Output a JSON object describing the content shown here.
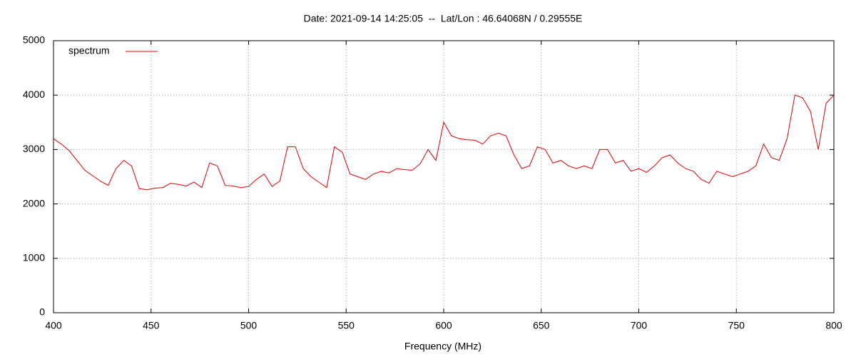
{
  "chart_data": {
    "type": "line",
    "title": "Date: 2021-09-14 14:25:05  --  Lat/Lon : 46.64068N / 0.29555E",
    "x_label": "Frequency (MHz)",
    "x": [
      400,
      404,
      408,
      412,
      416,
      420,
      424,
      428,
      432,
      436,
      440,
      444,
      448,
      452,
      456,
      460,
      464,
      468,
      472,
      476,
      480,
      484,
      488,
      492,
      496,
      500,
      504,
      508,
      512,
      516,
      520,
      524,
      528,
      532,
      536,
      540,
      544,
      548,
      552,
      556,
      560,
      564,
      568,
      572,
      576,
      580,
      584,
      588,
      592,
      596,
      600,
      604,
      608,
      612,
      616,
      620,
      624,
      628,
      632,
      636,
      640,
      644,
      648,
      652,
      656,
      660,
      664,
      668,
      672,
      676,
      680,
      684,
      688,
      692,
      696,
      700,
      704,
      708,
      712,
      716,
      720,
      724,
      728,
      732,
      736,
      740,
      744,
      748,
      752,
      756,
      760,
      764,
      768,
      772,
      776,
      780,
      784,
      788,
      792,
      796,
      800
    ],
    "series": [
      {
        "name": "spectrum",
        "color": "#dd0000",
        "values": [
          3200,
          3100,
          2980,
          2800,
          2620,
          2520,
          2420,
          2340,
          2650,
          2800,
          2700,
          2280,
          2260,
          2290,
          2300,
          2380,
          2360,
          2330,
          2400,
          2300,
          2750,
          2700,
          2340,
          2330,
          2300,
          2320,
          2450,
          2550,
          2320,
          2420,
          3050,
          3050,
          2650,
          2500,
          2400,
          2300,
          3050,
          2950,
          2550,
          2500,
          2450,
          2550,
          2600,
          2570,
          2650,
          2630,
          2620,
          2740,
          3000,
          2800,
          3500,
          3250,
          3200,
          3180,
          3170,
          3100,
          3250,
          3300,
          3250,
          2900,
          2650,
          2700,
          3050,
          3000,
          2750,
          2800,
          2700,
          2650,
          2700,
          2650,
          3000,
          3000,
          2750,
          2800,
          2600,
          2650,
          2580,
          2700,
          2850,
          2900,
          2750,
          2650,
          2600,
          2450,
          2380,
          2600,
          2550,
          2500,
          2550,
          2600,
          2700,
          3100,
          2850,
          2800,
          3200,
          4000,
          3950,
          3700,
          3000,
          3850,
          4000
        ]
      }
    ],
    "xlim": [
      400,
      800
    ],
    "xticks": [
      400,
      450,
      500,
      550,
      600,
      650,
      700,
      750,
      800
    ],
    "ylim": [
      0,
      5000
    ],
    "yticks": [
      0,
      1000,
      2000,
      3000,
      4000,
      5000
    ],
    "grid": true,
    "legend": "top-left"
  }
}
